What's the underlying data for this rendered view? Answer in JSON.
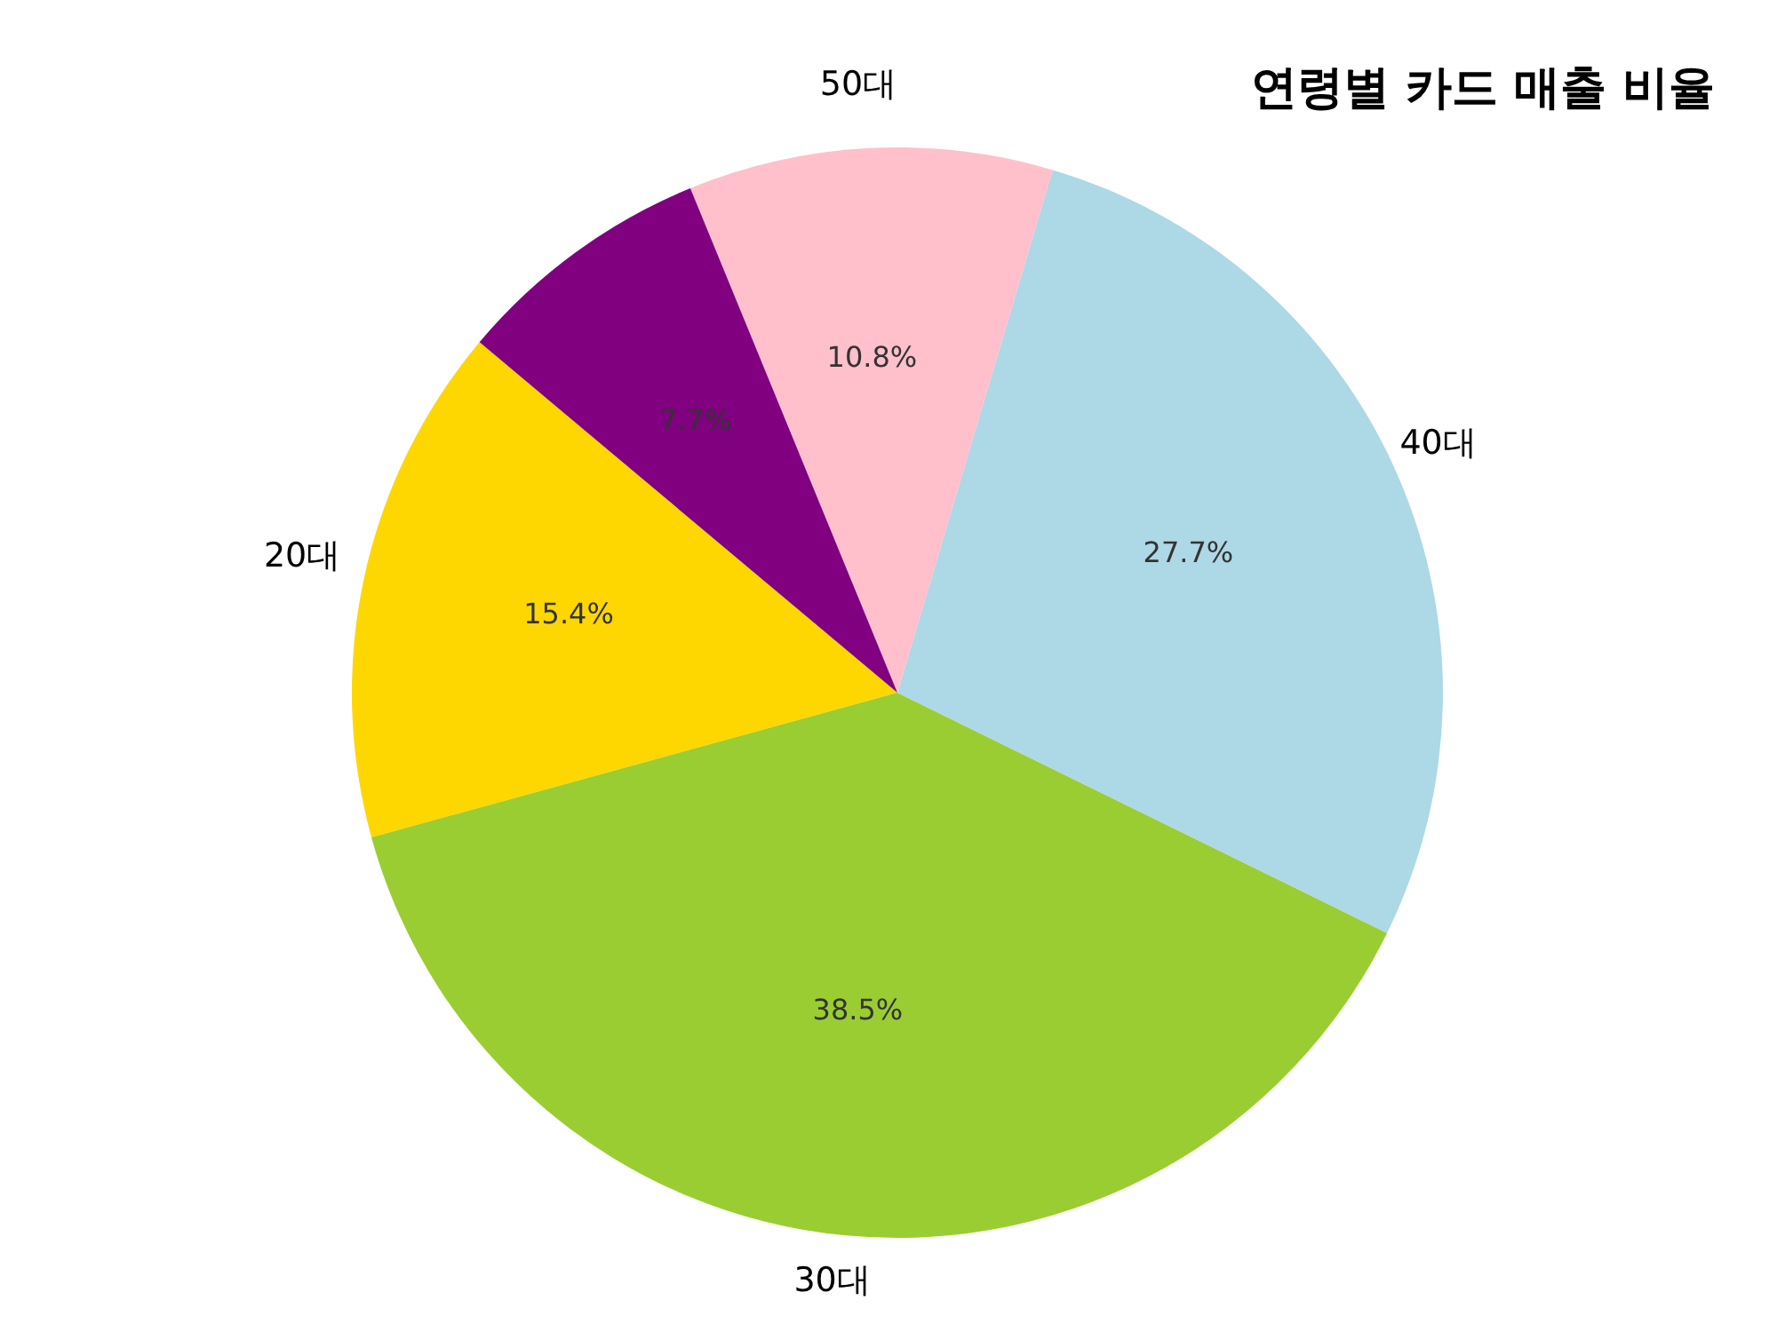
{
  "chart_data": {
    "type": "pie",
    "title": "연령별 카드 매출 비율",
    "categories": [
      "20대",
      "30대",
      "40대",
      "50대",
      null
    ],
    "values": [
      15.4,
      38.5,
      27.7,
      10.8,
      7.7
    ],
    "value_labels": [
      "15.4%",
      "38.5%",
      "27.7%",
      "10.8%",
      "7.7%"
    ],
    "colors": [
      "#ffd700",
      "#9acd32",
      "#add8e6",
      "#ffc0cb",
      "#800080"
    ],
    "legend": false
  }
}
